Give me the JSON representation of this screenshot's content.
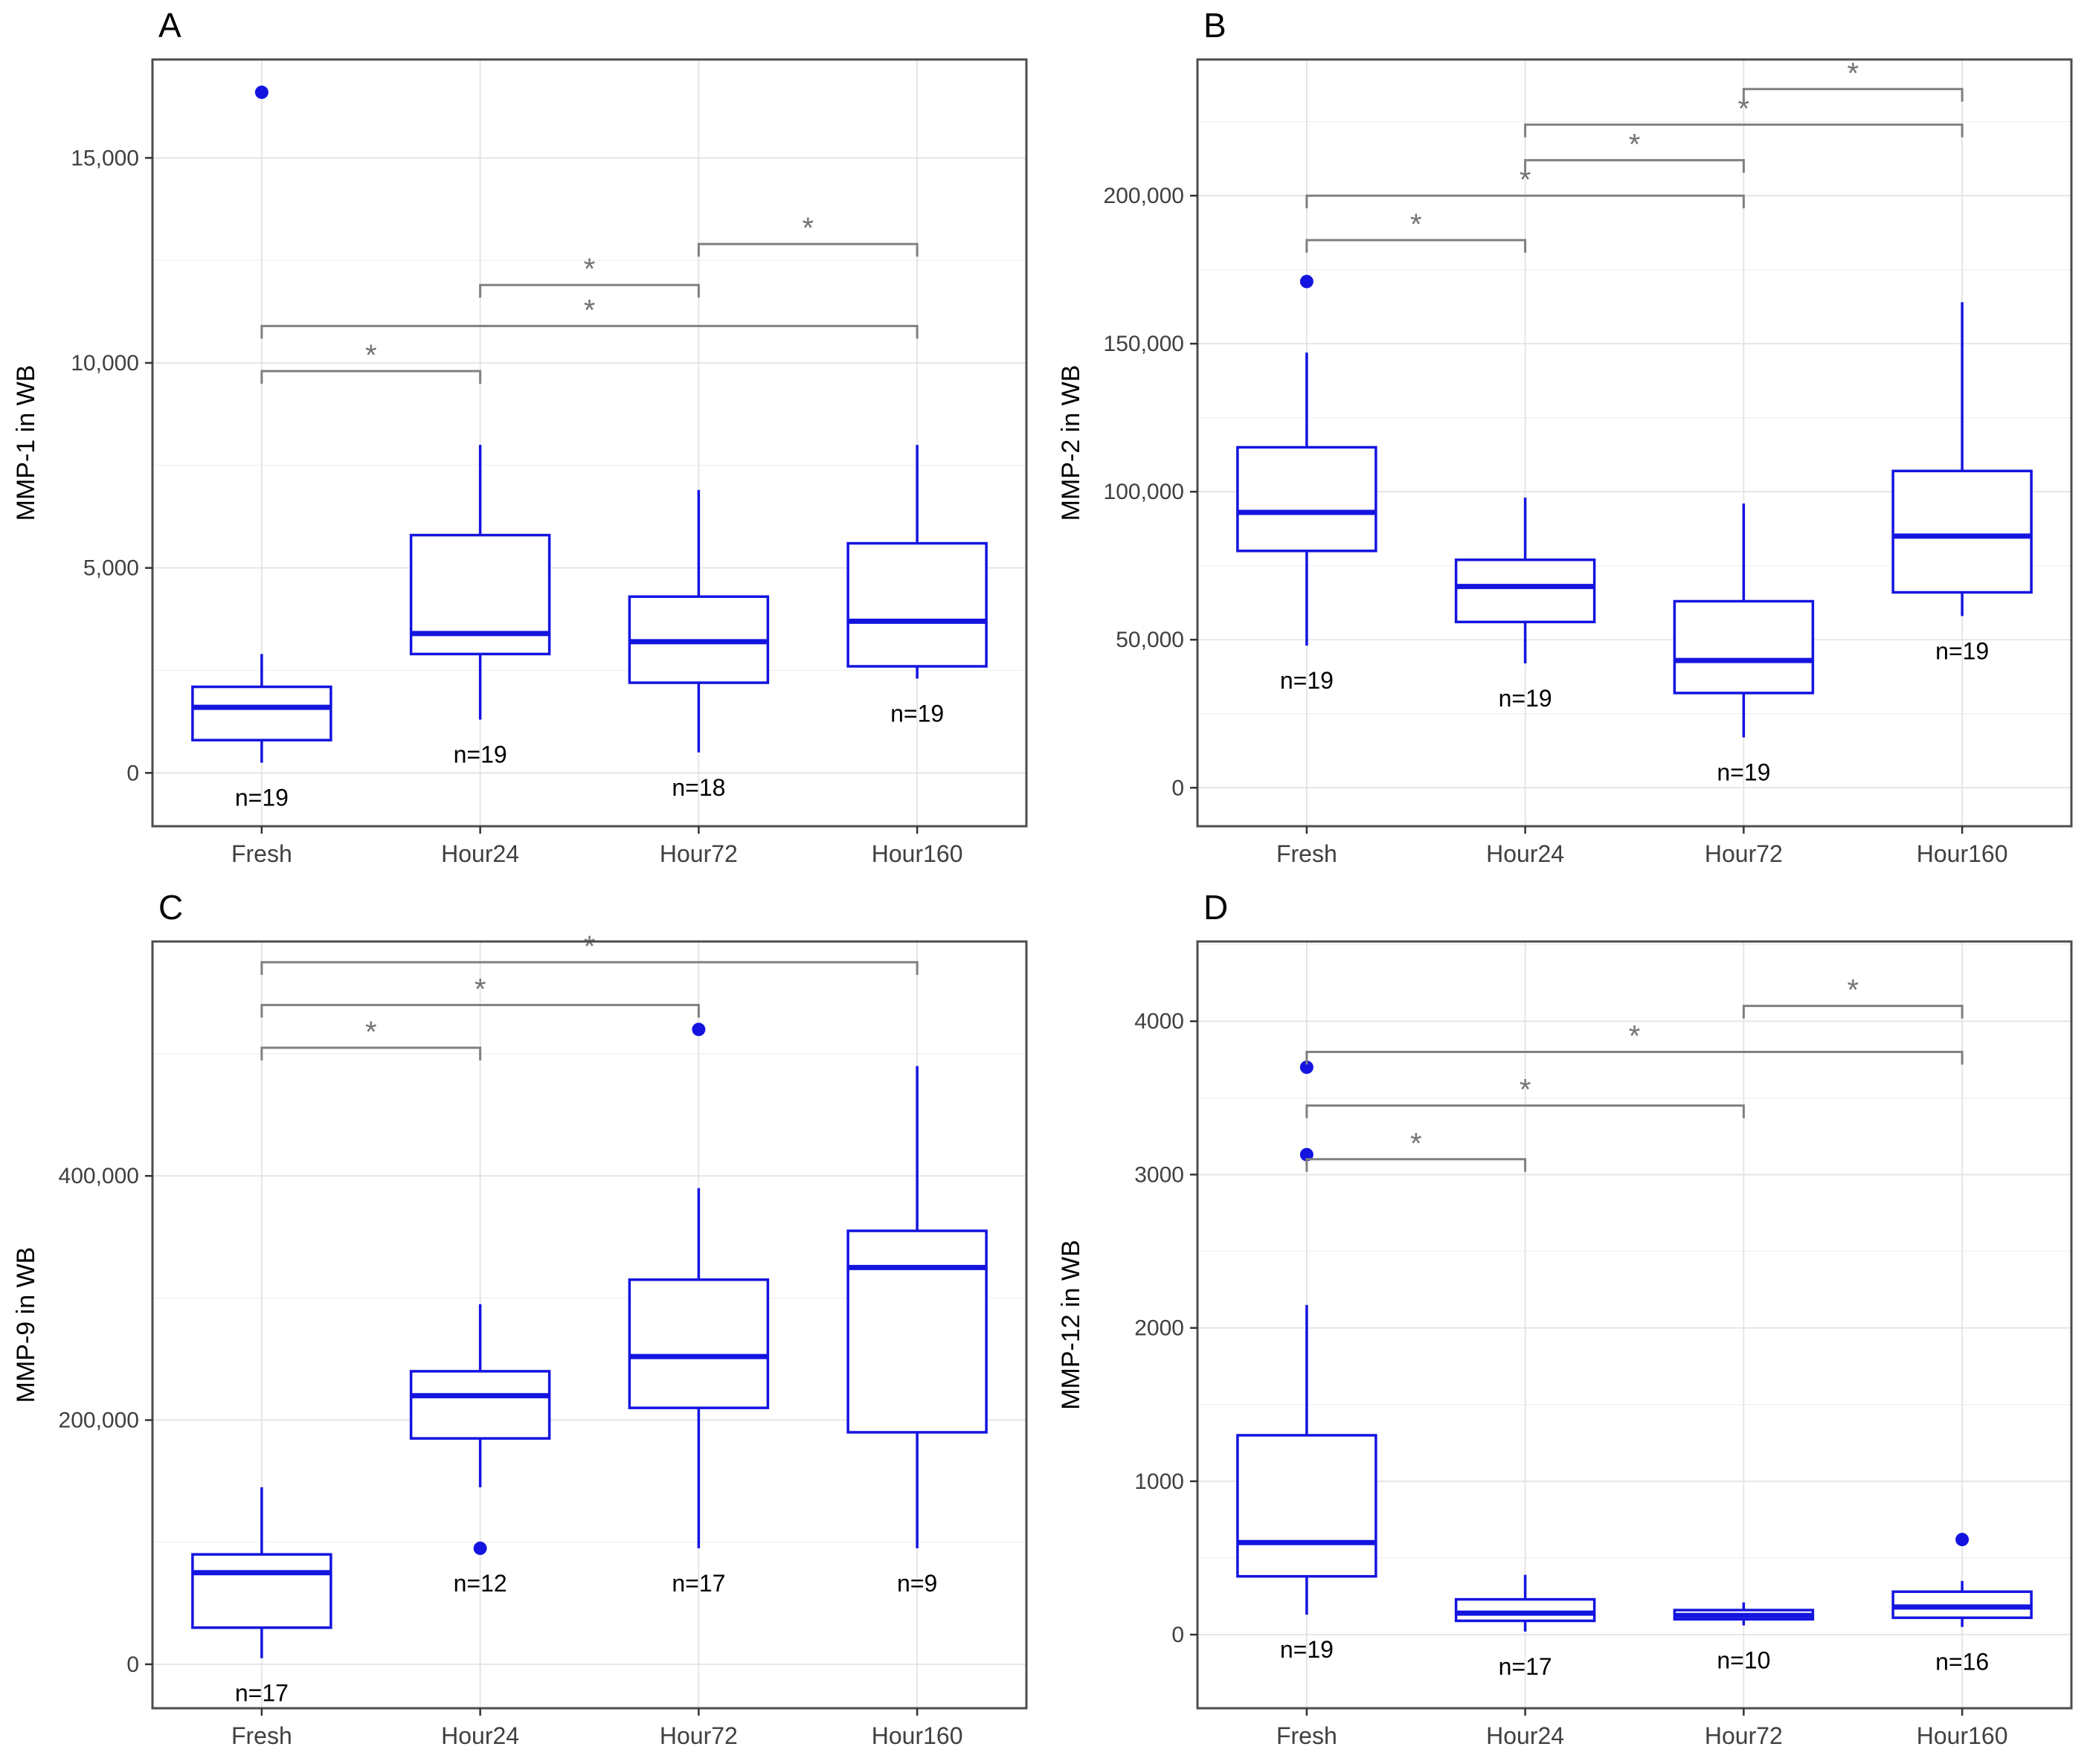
{
  "figure": {
    "description": "Four-panel boxplot figure of MMP levels in WB across storage timepoints",
    "background": "#ffffff"
  },
  "colors": {
    "box_stroke": "#1414e0",
    "outlier_fill": "#1414e0",
    "bracket": "#808080",
    "asterisk": "#737373",
    "grid_major": "#e3e3e3",
    "grid_minor": "#f1f1f1",
    "panel_border": "#4d4d4d",
    "axis_text": "#404040",
    "tick_mark": "#333333",
    "label_text": "#000000"
  },
  "chart_data": [
    {
      "type": "boxplot",
      "panel_label": "A",
      "ylabel": "MMP-1 in WB",
      "categories": [
        "Fresh",
        "Hour24",
        "Hour72",
        "Hour160"
      ],
      "ylim": [
        -1300,
        17400
      ],
      "yticks": [
        0,
        5000,
        10000,
        15000
      ],
      "ytick_labels": [
        "0",
        "5,000",
        "10,000",
        "15,000"
      ],
      "grid": true,
      "boxes": [
        {
          "category": "Fresh",
          "whisker_low": 250,
          "q1": 800,
          "median": 1600,
          "q3": 2100,
          "whisker_high": 2900,
          "outliers": [
            16600
          ],
          "n_label": "n=19"
        },
        {
          "category": "Hour24",
          "whisker_low": 1300,
          "q1": 2900,
          "median": 3400,
          "q3": 5800,
          "whisker_high": 8000,
          "outliers": [],
          "n_label": "n=19"
        },
        {
          "category": "Hour72",
          "whisker_low": 500,
          "q1": 2200,
          "median": 3200,
          "q3": 4300,
          "whisker_high": 6900,
          "outliers": [],
          "n_label": "n=18"
        },
        {
          "category": "Hour160",
          "whisker_low": 2300,
          "q1": 2600,
          "median": 3700,
          "q3": 5600,
          "whisker_high": 8000,
          "outliers": [],
          "n_label": "n=19"
        }
      ],
      "significance_brackets": [
        {
          "from": 0,
          "to": 1,
          "y": 9800,
          "label": "*"
        },
        {
          "from": 0,
          "to": 3,
          "y": 10900,
          "label": "*"
        },
        {
          "from": 1,
          "to": 2,
          "y": 11900,
          "label": "*"
        },
        {
          "from": 2,
          "to": 3,
          "y": 12900,
          "label": "*"
        }
      ]
    },
    {
      "type": "boxplot",
      "panel_label": "B",
      "ylabel": "MMP-2 in WB",
      "categories": [
        "Fresh",
        "Hour24",
        "Hour72",
        "Hour160"
      ],
      "ylim": [
        -13000,
        246000
      ],
      "yticks": [
        0,
        50000,
        100000,
        150000,
        200000
      ],
      "ytick_labels": [
        "0",
        "50,000",
        "100,000",
        "150,000",
        "200,000"
      ],
      "grid": true,
      "boxes": [
        {
          "category": "Fresh",
          "whisker_low": 48000,
          "q1": 80000,
          "median": 93000,
          "q3": 115000,
          "whisker_high": 147000,
          "outliers": [
            171000
          ],
          "n_label": "n=19"
        },
        {
          "category": "Hour24",
          "whisker_low": 42000,
          "q1": 56000,
          "median": 68000,
          "q3": 77000,
          "whisker_high": 98000,
          "outliers": [],
          "n_label": "n=19"
        },
        {
          "category": "Hour72",
          "whisker_low": 17000,
          "q1": 32000,
          "median": 43000,
          "q3": 63000,
          "whisker_high": 96000,
          "outliers": [],
          "n_label": "n=19"
        },
        {
          "category": "Hour160",
          "whisker_low": 58000,
          "q1": 66000,
          "median": 85000,
          "q3": 107000,
          "whisker_high": 164000,
          "outliers": [],
          "n_label": "n=19"
        }
      ],
      "significance_brackets": [
        {
          "from": 0,
          "to": 1,
          "y": 185000,
          "label": "*"
        },
        {
          "from": 0,
          "to": 2,
          "y": 200000,
          "label": "*"
        },
        {
          "from": 1,
          "to": 2,
          "y": 212000,
          "label": "*"
        },
        {
          "from": 1,
          "to": 3,
          "y": 224000,
          "label": "*"
        },
        {
          "from": 2,
          "to": 3,
          "y": 236000,
          "label": "*"
        }
      ]
    },
    {
      "type": "boxplot",
      "panel_label": "C",
      "ylabel": "MMP-9 in WB",
      "categories": [
        "Fresh",
        "Hour24",
        "Hour72",
        "Hour160"
      ],
      "ylim": [
        -36000,
        592000
      ],
      "yticks": [
        0,
        200000,
        400000
      ],
      "ytick_labels": [
        "0",
        "200,000",
        "400,000"
      ],
      "grid": true,
      "boxes": [
        {
          "category": "Fresh",
          "whisker_low": 5000,
          "q1": 30000,
          "median": 75000,
          "q3": 90000,
          "whisker_high": 145000,
          "outliers": [],
          "n_label": "n=17"
        },
        {
          "category": "Hour24",
          "whisker_low": 145000,
          "q1": 185000,
          "median": 220000,
          "q3": 240000,
          "whisker_high": 295000,
          "outliers": [
            95000
          ],
          "n_label": "n=12"
        },
        {
          "category": "Hour72",
          "whisker_low": 95000,
          "q1": 210000,
          "median": 252000,
          "q3": 315000,
          "whisker_high": 390000,
          "outliers": [
            520000
          ],
          "n_label": "n=17"
        },
        {
          "category": "Hour160",
          "whisker_low": 95000,
          "q1": 190000,
          "median": 325000,
          "q3": 355000,
          "whisker_high": 490000,
          "outliers": [],
          "n_label": "n=9"
        }
      ],
      "significance_brackets": [
        {
          "from": 0,
          "to": 1,
          "y": 505000,
          "label": "*"
        },
        {
          "from": 0,
          "to": 2,
          "y": 540000,
          "label": "*"
        },
        {
          "from": 0,
          "to": 3,
          "y": 575000,
          "label": "*"
        }
      ]
    },
    {
      "type": "boxplot",
      "panel_label": "D",
      "ylabel": "MMP-12 in WB",
      "categories": [
        "Fresh",
        "Hour24",
        "Hour72",
        "Hour160"
      ],
      "ylim": [
        -480,
        4520
      ],
      "yticks": [
        0,
        1000,
        2000,
        3000,
        4000
      ],
      "ytick_labels": [
        "0",
        "1000",
        "2000",
        "3000",
        "4000"
      ],
      "grid": true,
      "boxes": [
        {
          "category": "Fresh",
          "whisker_low": 130,
          "q1": 380,
          "median": 600,
          "q3": 1300,
          "whisker_high": 2150,
          "outliers": [
            3700,
            3130
          ],
          "n_label": "n=19"
        },
        {
          "category": "Hour24",
          "whisker_low": 20,
          "q1": 90,
          "median": 140,
          "q3": 230,
          "whisker_high": 390,
          "outliers": [],
          "n_label": "n=17"
        },
        {
          "category": "Hour72",
          "whisker_low": 60,
          "q1": 100,
          "median": 125,
          "q3": 160,
          "whisker_high": 210,
          "outliers": [],
          "n_label": "n=10"
        },
        {
          "category": "Hour160",
          "whisker_low": 50,
          "q1": 110,
          "median": 180,
          "q3": 280,
          "whisker_high": 350,
          "outliers": [
            620
          ],
          "n_label": "n=16"
        }
      ],
      "significance_brackets": [
        {
          "from": 0,
          "to": 1,
          "y": 3100,
          "label": "*"
        },
        {
          "from": 0,
          "to": 2,
          "y": 3450,
          "label": "*"
        },
        {
          "from": 0,
          "to": 3,
          "y": 3800,
          "label": "*"
        },
        {
          "from": 2,
          "to": 3,
          "y": 4100,
          "label": "*"
        }
      ]
    }
  ]
}
